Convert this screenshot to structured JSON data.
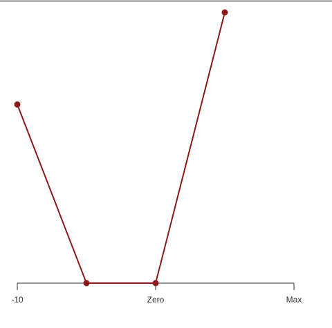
{
  "chart_data": {
    "type": "line",
    "x": [
      -10,
      -5,
      0,
      5
    ],
    "series": [
      {
        "color": "#8b1a1a",
        "values": [
          66,
          0,
          0,
          100
        ]
      }
    ],
    "xlim": [
      -10,
      10
    ],
    "xticks": [
      -10,
      {
        "value": 0,
        "label": "Zero"
      },
      {
        "value": 10,
        "label": "Max"
      }
    ],
    "ylim": [
      0,
      100
    ]
  }
}
